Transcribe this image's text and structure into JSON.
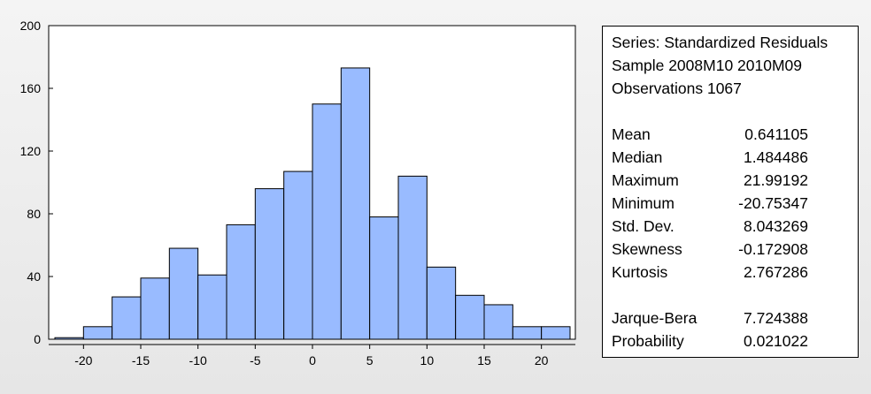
{
  "chart_data": {
    "type": "bar",
    "bin_width": 2.5,
    "bins": [
      {
        "from": -22.5,
        "to": -20,
        "count": 1
      },
      {
        "from": -20,
        "to": -17.5,
        "count": 8
      },
      {
        "from": -17.5,
        "to": -15,
        "count": 27
      },
      {
        "from": -15,
        "to": -12.5,
        "count": 39
      },
      {
        "from": -12.5,
        "to": -10,
        "count": 58
      },
      {
        "from": -10,
        "to": -7.5,
        "count": 41
      },
      {
        "from": -7.5,
        "to": -5,
        "count": 73
      },
      {
        "from": -5,
        "to": -2.5,
        "count": 96
      },
      {
        "from": -2.5,
        "to": 0,
        "count": 107
      },
      {
        "from": 0,
        "to": 2.5,
        "count": 150
      },
      {
        "from": 2.5,
        "to": 5,
        "count": 173
      },
      {
        "from": 5,
        "to": 7.5,
        "count": 78
      },
      {
        "from": 7.5,
        "to": 10,
        "count": 104
      },
      {
        "from": 10,
        "to": 12.5,
        "count": 46
      },
      {
        "from": 12.5,
        "to": 15,
        "count": 28
      },
      {
        "from": 15,
        "to": 17.5,
        "count": 22
      },
      {
        "from": 17.5,
        "to": 20,
        "count": 8
      },
      {
        "from": 20,
        "to": 22.5,
        "count": 8
      }
    ],
    "xlim": [
      -22.5,
      22.5
    ],
    "ylim": [
      0,
      200
    ],
    "x_ticks": [
      -20,
      -15,
      -10,
      -5,
      0,
      5,
      10,
      15,
      20
    ],
    "y_ticks": [
      0,
      40,
      80,
      120,
      160,
      200
    ],
    "bar_color": "#99bbff",
    "grid": false,
    "legend": "none"
  },
  "stats_panel": {
    "header": [
      "Series: Standardized Residuals",
      "Sample 2008M10 2010M09",
      "Observations 1067"
    ],
    "descriptives": [
      {
        "label": "Mean",
        "value": "0.641105"
      },
      {
        "label": "Median",
        "value": "1.484486"
      },
      {
        "label": "Maximum",
        "value": "21.99192"
      },
      {
        "label": "Minimum",
        "value": "-20.75347"
      },
      {
        "label": "Std. Dev.",
        "value": "8.043269"
      },
      {
        "label": "Skewness",
        "value": "-0.172908"
      },
      {
        "label": "Kurtosis",
        "value": "2.767286"
      }
    ],
    "tests": [
      {
        "label": "Jarque-Bera",
        "value": "7.724388"
      },
      {
        "label": "Probability",
        "value": "0.021022"
      }
    ]
  }
}
